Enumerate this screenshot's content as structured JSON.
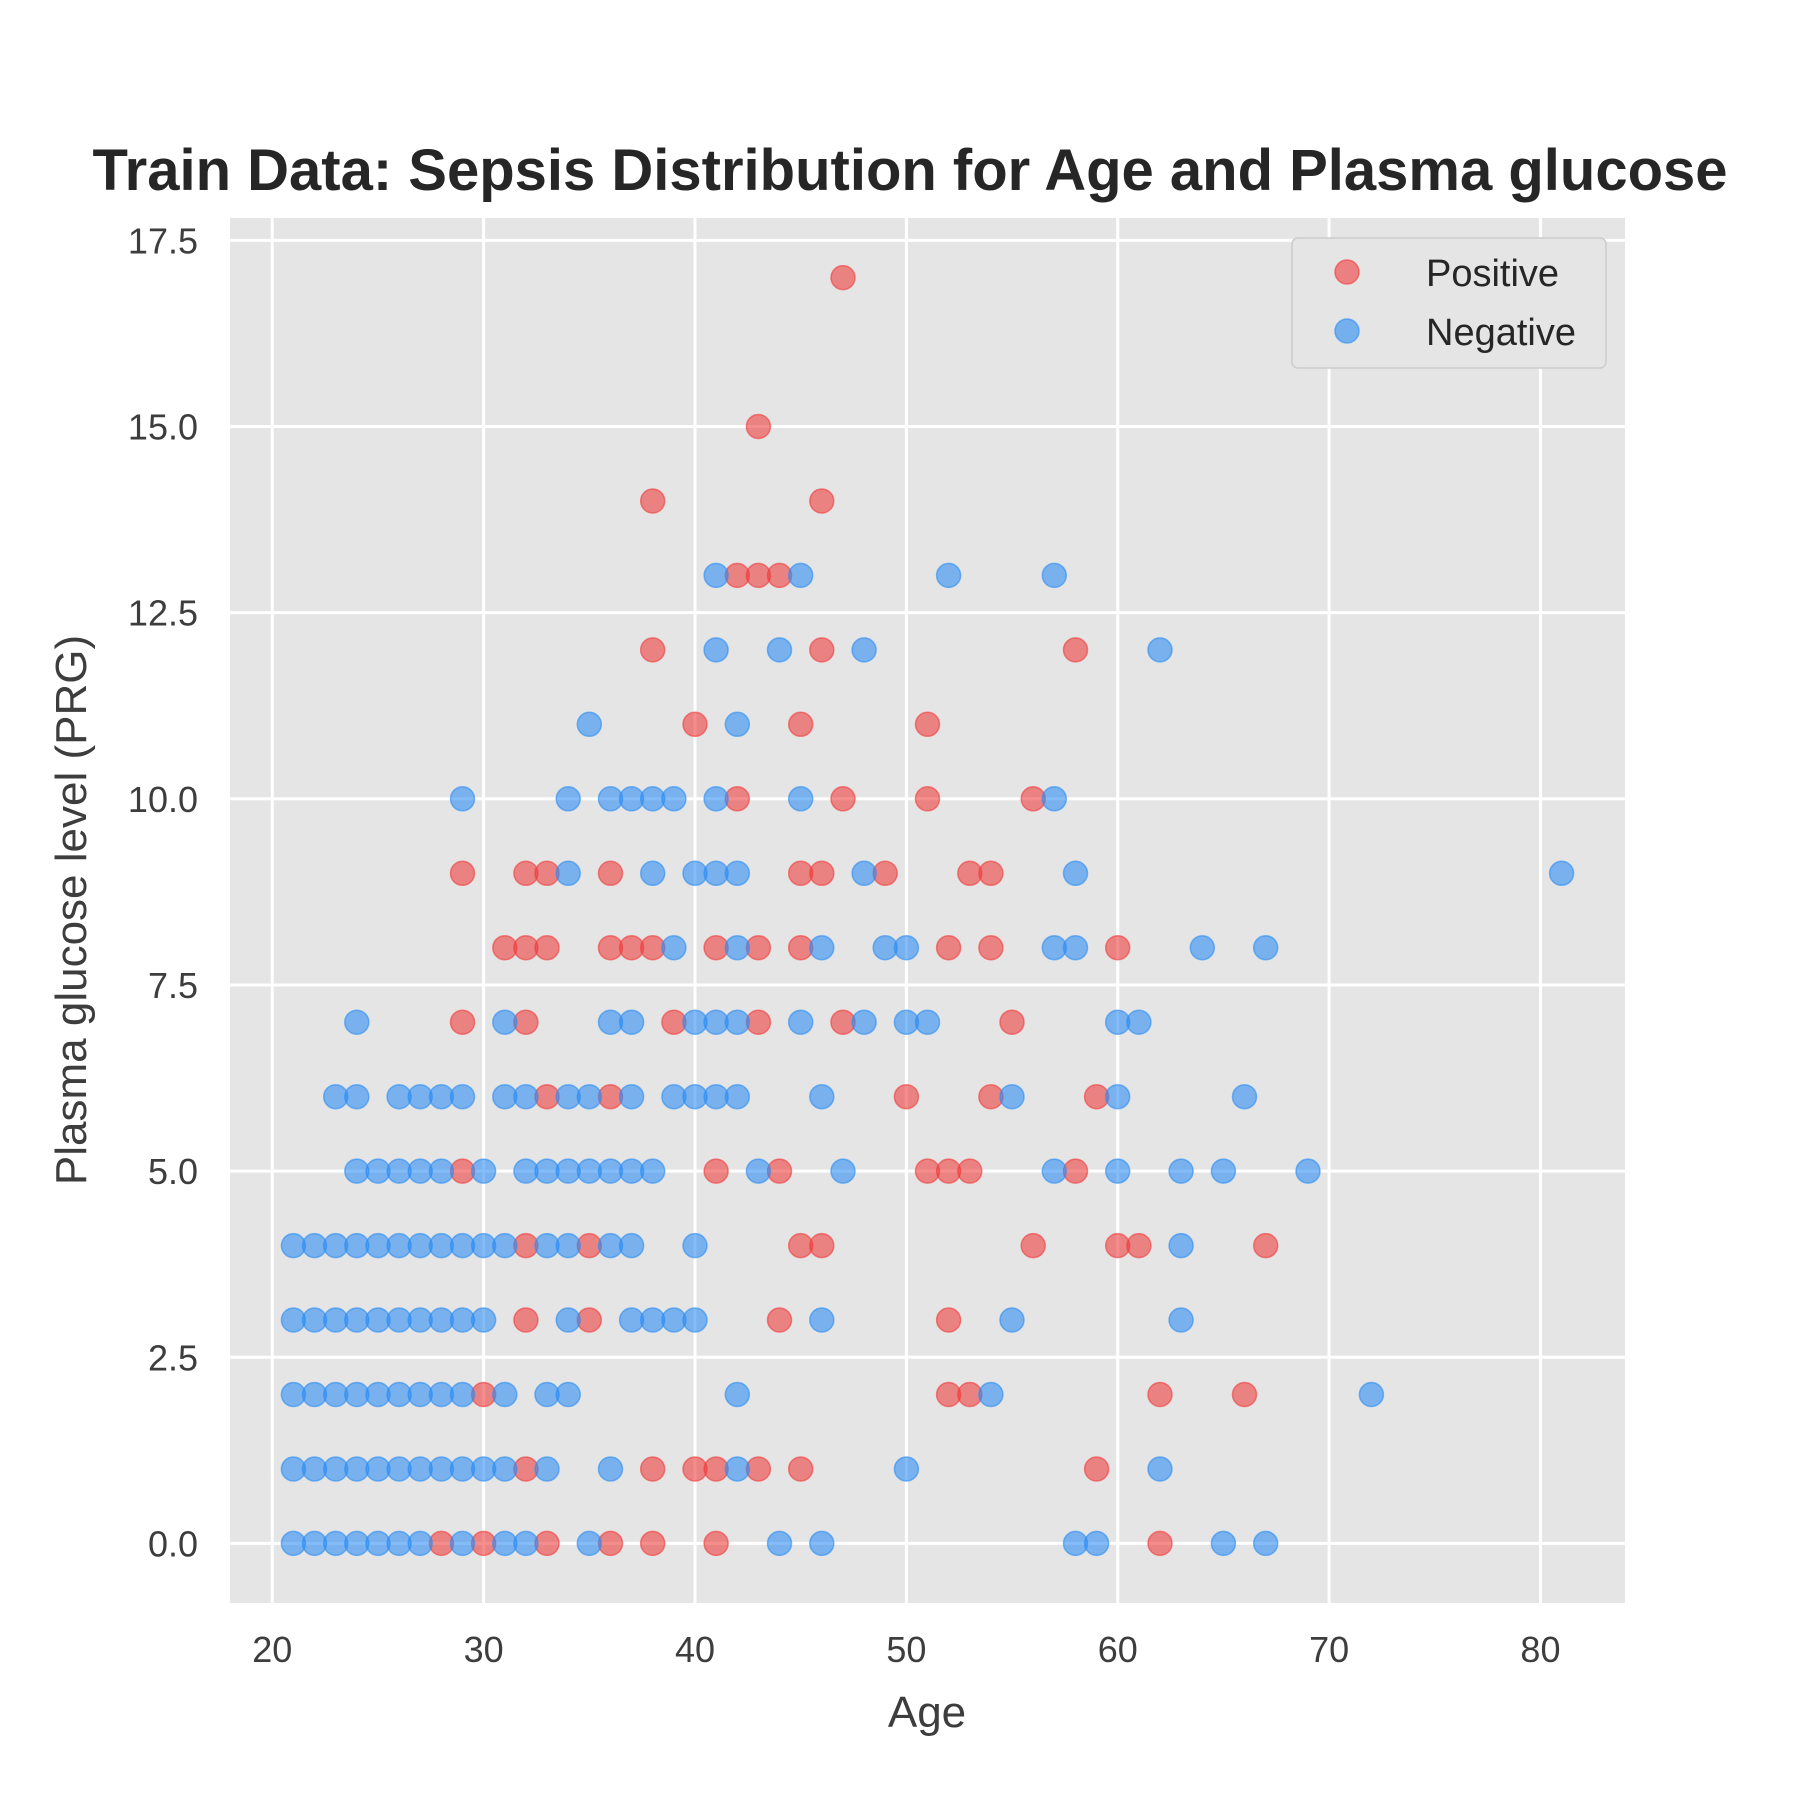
{
  "chart_data": {
    "type": "scatter",
    "title": "Train Data: Sepsis Distribution for Age and Plasma glucose",
    "xlabel": "Age",
    "ylabel": "Plasma glucose level (PRG)",
    "xlim": [
      18,
      84
    ],
    "ylim": [
      -0.8,
      17.8
    ],
    "xticks": [
      "20",
      "30",
      "40",
      "50",
      "60",
      "70",
      "80"
    ],
    "yticks": [
      "0.0",
      "2.5",
      "5.0",
      "7.5",
      "10.0",
      "12.5",
      "15.0",
      "17.5"
    ],
    "grid": true,
    "legend_position": "top-right",
    "series": [
      {
        "name": "Positive",
        "color": "#f03b3b",
        "points": [
          [
            47,
            17
          ],
          [
            43,
            15
          ],
          [
            38,
            14
          ],
          [
            46,
            14
          ],
          [
            42,
            13
          ],
          [
            43,
            13
          ],
          [
            44,
            13
          ],
          [
            38,
            12
          ],
          [
            46,
            12
          ],
          [
            58,
            12
          ],
          [
            40,
            11
          ],
          [
            45,
            11
          ],
          [
            51,
            11
          ],
          [
            42,
            10
          ],
          [
            47,
            10
          ],
          [
            51,
            10
          ],
          [
            56,
            10
          ],
          [
            29,
            9
          ],
          [
            32,
            9
          ],
          [
            33,
            9
          ],
          [
            36,
            9
          ],
          [
            45,
            9
          ],
          [
            46,
            9
          ],
          [
            49,
            9
          ],
          [
            53,
            9
          ],
          [
            54,
            9
          ],
          [
            31,
            8
          ],
          [
            32,
            8
          ],
          [
            33,
            8
          ],
          [
            36,
            8
          ],
          [
            37,
            8
          ],
          [
            38,
            8
          ],
          [
            41,
            8
          ],
          [
            43,
            8
          ],
          [
            45,
            8
          ],
          [
            52,
            8
          ],
          [
            54,
            8
          ],
          [
            60,
            8
          ],
          [
            29,
            7
          ],
          [
            32,
            7
          ],
          [
            39,
            7
          ],
          [
            43,
            7
          ],
          [
            47,
            7
          ],
          [
            55,
            7
          ],
          [
            33,
            6
          ],
          [
            36,
            6
          ],
          [
            50,
            6
          ],
          [
            54,
            6
          ],
          [
            59,
            6
          ],
          [
            29,
            5
          ],
          [
            41,
            5
          ],
          [
            44,
            5
          ],
          [
            51,
            5
          ],
          [
            52,
            5
          ],
          [
            53,
            5
          ],
          [
            58,
            5
          ],
          [
            32,
            4
          ],
          [
            35,
            4
          ],
          [
            45,
            4
          ],
          [
            46,
            4
          ],
          [
            56,
            4
          ],
          [
            60,
            4
          ],
          [
            61,
            4
          ],
          [
            67,
            4
          ],
          [
            32,
            3
          ],
          [
            35,
            3
          ],
          [
            44,
            3
          ],
          [
            52,
            3
          ],
          [
            30,
            2
          ],
          [
            52,
            2
          ],
          [
            53,
            2
          ],
          [
            62,
            2
          ],
          [
            66,
            2
          ],
          [
            32,
            1
          ],
          [
            38,
            1
          ],
          [
            40,
            1
          ],
          [
            41,
            1
          ],
          [
            43,
            1
          ],
          [
            45,
            1
          ],
          [
            59,
            1
          ],
          [
            28,
            0
          ],
          [
            30,
            0
          ],
          [
            33,
            0
          ],
          [
            36,
            0
          ],
          [
            38,
            0
          ],
          [
            41,
            0
          ],
          [
            62,
            0
          ]
        ]
      },
      {
        "name": "Negative",
        "color": "#2a8cf4",
        "points": [
          [
            41,
            13
          ],
          [
            45,
            13
          ],
          [
            52,
            13
          ],
          [
            57,
            13
          ],
          [
            41,
            12
          ],
          [
            44,
            12
          ],
          [
            48,
            12
          ],
          [
            62,
            12
          ],
          [
            35,
            11
          ],
          [
            42,
            11
          ],
          [
            29,
            10
          ],
          [
            34,
            10
          ],
          [
            36,
            10
          ],
          [
            37,
            10
          ],
          [
            38,
            10
          ],
          [
            39,
            10
          ],
          [
            41,
            10
          ],
          [
            45,
            10
          ],
          [
            57,
            10
          ],
          [
            34,
            9
          ],
          [
            38,
            9
          ],
          [
            40,
            9
          ],
          [
            41,
            9
          ],
          [
            42,
            9
          ],
          [
            48,
            9
          ],
          [
            58,
            9
          ],
          [
            81,
            9
          ],
          [
            39,
            8
          ],
          [
            42,
            8
          ],
          [
            46,
            8
          ],
          [
            49,
            8
          ],
          [
            50,
            8
          ],
          [
            57,
            8
          ],
          [
            58,
            8
          ],
          [
            64,
            8
          ],
          [
            67,
            8
          ],
          [
            24,
            7
          ],
          [
            31,
            7
          ],
          [
            36,
            7
          ],
          [
            37,
            7
          ],
          [
            40,
            7
          ],
          [
            41,
            7
          ],
          [
            42,
            7
          ],
          [
            45,
            7
          ],
          [
            48,
            7
          ],
          [
            50,
            7
          ],
          [
            51,
            7
          ],
          [
            60,
            7
          ],
          [
            61,
            7
          ],
          [
            23,
            6
          ],
          [
            24,
            6
          ],
          [
            26,
            6
          ],
          [
            27,
            6
          ],
          [
            28,
            6
          ],
          [
            29,
            6
          ],
          [
            31,
            6
          ],
          [
            32,
            6
          ],
          [
            34,
            6
          ],
          [
            35,
            6
          ],
          [
            37,
            6
          ],
          [
            39,
            6
          ],
          [
            40,
            6
          ],
          [
            41,
            6
          ],
          [
            42,
            6
          ],
          [
            46,
            6
          ],
          [
            55,
            6
          ],
          [
            60,
            6
          ],
          [
            66,
            6
          ],
          [
            24,
            5
          ],
          [
            25,
            5
          ],
          [
            26,
            5
          ],
          [
            27,
            5
          ],
          [
            28,
            5
          ],
          [
            30,
            5
          ],
          [
            32,
            5
          ],
          [
            33,
            5
          ],
          [
            34,
            5
          ],
          [
            35,
            5
          ],
          [
            36,
            5
          ],
          [
            37,
            5
          ],
          [
            38,
            5
          ],
          [
            43,
            5
          ],
          [
            47,
            5
          ],
          [
            57,
            5
          ],
          [
            60,
            5
          ],
          [
            63,
            5
          ],
          [
            65,
            5
          ],
          [
            69,
            5
          ],
          [
            21,
            4
          ],
          [
            22,
            4
          ],
          [
            23,
            4
          ],
          [
            24,
            4
          ],
          [
            25,
            4
          ],
          [
            26,
            4
          ],
          [
            27,
            4
          ],
          [
            28,
            4
          ],
          [
            29,
            4
          ],
          [
            30,
            4
          ],
          [
            31,
            4
          ],
          [
            33,
            4
          ],
          [
            34,
            4
          ],
          [
            36,
            4
          ],
          [
            37,
            4
          ],
          [
            40,
            4
          ],
          [
            63,
            4
          ],
          [
            21,
            3
          ],
          [
            22,
            3
          ],
          [
            23,
            3
          ],
          [
            24,
            3
          ],
          [
            25,
            3
          ],
          [
            26,
            3
          ],
          [
            27,
            3
          ],
          [
            28,
            3
          ],
          [
            29,
            3
          ],
          [
            30,
            3
          ],
          [
            34,
            3
          ],
          [
            37,
            3
          ],
          [
            38,
            3
          ],
          [
            39,
            3
          ],
          [
            40,
            3
          ],
          [
            46,
            3
          ],
          [
            55,
            3
          ],
          [
            63,
            3
          ],
          [
            21,
            2
          ],
          [
            22,
            2
          ],
          [
            23,
            2
          ],
          [
            24,
            2
          ],
          [
            25,
            2
          ],
          [
            26,
            2
          ],
          [
            27,
            2
          ],
          [
            28,
            2
          ],
          [
            29,
            2
          ],
          [
            31,
            2
          ],
          [
            33,
            2
          ],
          [
            34,
            2
          ],
          [
            42,
            2
          ],
          [
            54,
            2
          ],
          [
            72,
            2
          ],
          [
            21,
            1
          ],
          [
            22,
            1
          ],
          [
            23,
            1
          ],
          [
            24,
            1
          ],
          [
            25,
            1
          ],
          [
            26,
            1
          ],
          [
            27,
            1
          ],
          [
            28,
            1
          ],
          [
            29,
            1
          ],
          [
            30,
            1
          ],
          [
            31,
            1
          ],
          [
            33,
            1
          ],
          [
            36,
            1
          ],
          [
            42,
            1
          ],
          [
            50,
            1
          ],
          [
            62,
            1
          ],
          [
            21,
            0
          ],
          [
            22,
            0
          ],
          [
            23,
            0
          ],
          [
            24,
            0
          ],
          [
            25,
            0
          ],
          [
            26,
            0
          ],
          [
            27,
            0
          ],
          [
            29,
            0
          ],
          [
            31,
            0
          ],
          [
            32,
            0
          ],
          [
            35,
            0
          ],
          [
            44,
            0
          ],
          [
            46,
            0
          ],
          [
            58,
            0
          ],
          [
            59,
            0
          ],
          [
            65,
            0
          ],
          [
            67,
            0
          ]
        ]
      }
    ]
  }
}
